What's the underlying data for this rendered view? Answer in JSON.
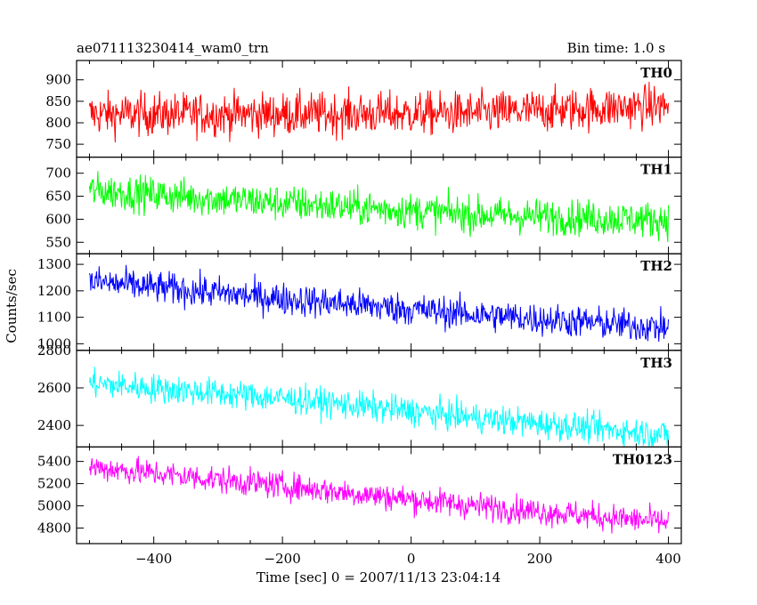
{
  "header": {
    "title": "ae071113230414_wam0_trn",
    "bin_time": "Bin time: 1.0 s"
  },
  "axes": {
    "xlabel": "Time [sec] 0 = 2007/11/13 23:04:14",
    "ylabel": "Counts/sec",
    "xlim": [
      -520,
      420
    ],
    "x_ticks": [
      -400,
      -200,
      0,
      200,
      400
    ],
    "x_tick_labels": [
      "−400",
      "−200",
      "0",
      "200",
      "400"
    ]
  },
  "chart_data": {
    "type": "line",
    "x_range": [
      -500,
      400
    ],
    "bin_time_s": 1.0,
    "panels": [
      {
        "name": "TH0",
        "color": "#ff0000",
        "ylim": [
          720,
          945
        ],
        "y_ticks": [
          750,
          800,
          850,
          900
        ],
        "trend": [
          [
            -500,
            820
          ],
          [
            -200,
            820
          ],
          [
            100,
            822
          ],
          [
            400,
            840
          ]
        ],
        "noise_amplitude": 45
      },
      {
        "name": "TH1",
        "color": "#00ff00",
        "ylim": [
          525,
          735
        ],
        "y_ticks": [
          550,
          600,
          650,
          700
        ],
        "trend": [
          [
            -500,
            663
          ],
          [
            -200,
            635
          ],
          [
            100,
            610
          ],
          [
            400,
            598
          ]
        ],
        "noise_amplitude": 35
      },
      {
        "name": "TH2",
        "color": "#0000ff",
        "ylim": [
          975,
          1340
        ],
        "y_ticks": [
          1000,
          1100,
          1200,
          1300
        ],
        "trend": [
          [
            -500,
            1235
          ],
          [
            -200,
            1170
          ],
          [
            100,
            1110
          ],
          [
            400,
            1060
          ]
        ],
        "noise_amplitude": 55
      },
      {
        "name": "TH3",
        "color": "#00ffff",
        "ylim": [
          2285,
          2800
        ],
        "y_ticks": [
          2400,
          2600,
          2800
        ],
        "trend": [
          [
            -500,
            2625
          ],
          [
            -200,
            2545
          ],
          [
            100,
            2440
          ],
          [
            400,
            2350
          ]
        ],
        "noise_amplitude": 70
      },
      {
        "name": "TH0123",
        "color": "#ff00ff",
        "ylim": [
          4660,
          5530
        ],
        "y_ticks": [
          4800,
          5000,
          5200,
          5400
        ],
        "trend": [
          [
            -500,
            5350
          ],
          [
            -200,
            5180
          ],
          [
            100,
            5000
          ],
          [
            400,
            4850
          ]
        ],
        "noise_amplitude": 110
      }
    ]
  }
}
